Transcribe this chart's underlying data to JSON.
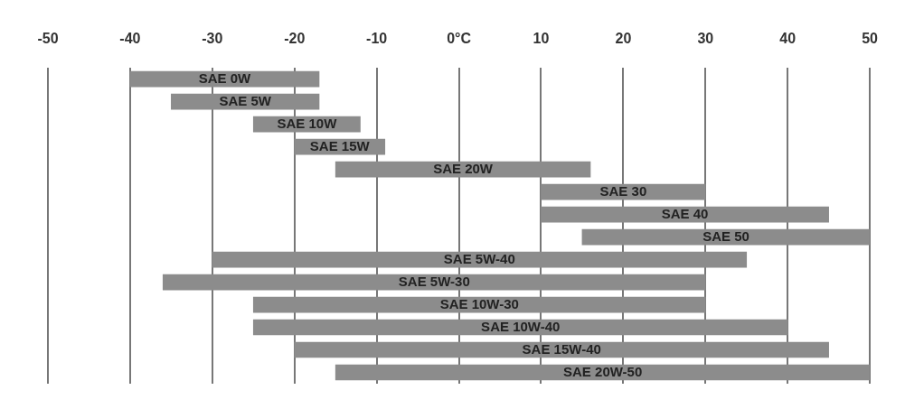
{
  "chart_data": {
    "type": "bar",
    "orientation": "horizontal",
    "categories": [
      "SAE 0W",
      "SAE 5W",
      "SAE 10W",
      "SAE 15W",
      "SAE 20W",
      "SAE 30",
      "SAE 40",
      "SAE 50",
      "SAE 5W-40",
      "SAE 5W-30",
      "SAE 10W-30",
      "SAE 10W-40",
      "SAE 15W-40",
      "SAE 20W-50"
    ],
    "base": [
      -40,
      -35,
      -25,
      -20,
      -15,
      10,
      10,
      15,
      -30,
      -36,
      -25,
      -25,
      -20,
      -15
    ],
    "values": [
      23,
      18,
      13,
      11,
      31,
      20,
      35,
      35,
      65,
      66,
      55,
      65,
      65,
      65
    ],
    "color": "#8c8c8c",
    "xlim": [
      -50,
      50
    ],
    "xticks": [
      -50,
      -40,
      -30,
      -20,
      -10,
      {
        "value": 0,
        "label": "0°C"
      },
      10,
      20,
      30,
      40,
      50
    ],
    "grid": "x"
  }
}
